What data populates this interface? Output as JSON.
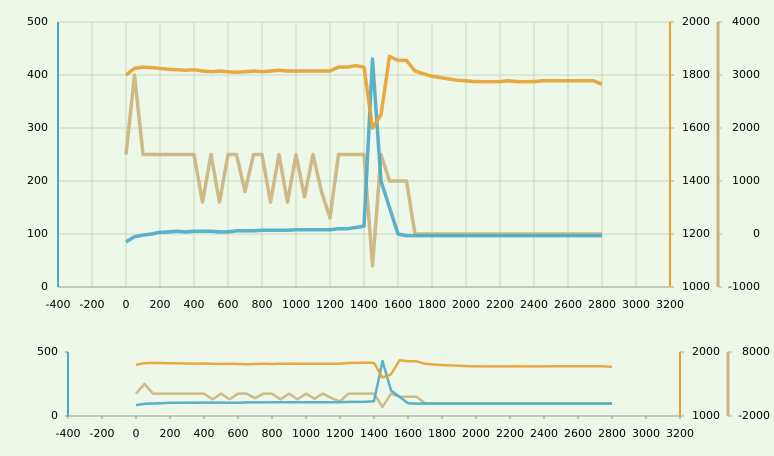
{
  "chart_data": [
    {
      "type": "line",
      "x": [
        0,
        50,
        100,
        150,
        200,
        250,
        300,
        350,
        400,
        450,
        500,
        550,
        600,
        650,
        700,
        750,
        800,
        850,
        900,
        950,
        1000,
        1050,
        1100,
        1150,
        1200,
        1250,
        1300,
        1350,
        1400,
        1450,
        1500,
        1550,
        1600,
        1650,
        1700,
        1750,
        1800,
        1850,
        1900,
        1950,
        2000,
        2050,
        2100,
        2150,
        2200,
        2250,
        2300,
        2350,
        2400,
        2450,
        2500,
        2550,
        2600,
        2650,
        2700,
        2750,
        2800
      ],
      "xlim": [
        -400,
        3200
      ],
      "xticks": [
        -400,
        -200,
        0,
        200,
        400,
        600,
        800,
        1000,
        1200,
        1400,
        1600,
        1800,
        2000,
        2200,
        2400,
        2600,
        2800,
        3000,
        3200
      ],
      "ylim": [
        0,
        500
      ],
      "yticks": [
        0,
        100,
        200,
        300,
        400,
        500
      ],
      "y2lim": [
        1000,
        2000
      ],
      "y2ticks": [
        1000,
        1200,
        1400,
        1600,
        1800,
        2000
      ],
      "y3lim": [
        -1000,
        4000
      ],
      "y3ticks": [
        -1000,
        0,
        1000,
        2000,
        3000,
        4000
      ],
      "grid": true,
      "series": [
        {
          "color": "#c8b27e",
          "axis": "y3",
          "values": [
            1500,
            3000,
            1500,
            1500,
            1500,
            1500,
            1500,
            1500,
            1500,
            600,
            1500,
            600,
            1500,
            1500,
            800,
            1500,
            1500,
            600,
            1500,
            600,
            1500,
            700,
            1500,
            800,
            300,
            1500,
            1500,
            1500,
            1500,
            -600,
            1500,
            1000,
            1000,
            1000,
            0,
            0,
            0,
            0,
            0,
            0,
            0,
            0,
            0,
            0,
            0,
            0,
            0,
            0,
            0,
            0,
            0,
            0,
            0,
            0,
            0,
            0,
            0
          ]
        },
        {
          "color": "#4aa8c8",
          "axis": "y",
          "values": [
            85,
            95,
            98,
            100,
            103,
            104,
            105,
            104,
            105,
            105,
            105,
            104,
            104,
            106,
            106,
            106,
            107,
            107,
            107,
            107,
            108,
            108,
            108,
            108,
            108,
            110,
            110,
            112,
            115,
            430,
            200,
            150,
            100,
            97,
            97,
            97,
            97,
            97,
            97,
            97,
            97,
            97,
            97,
            97,
            97,
            97,
            97,
            97,
            97,
            97,
            97,
            97,
            97,
            97,
            97,
            97,
            97
          ]
        },
        {
          "color": "#e8a030",
          "axis": "y2",
          "values": [
            1800,
            1825,
            1830,
            1828,
            1825,
            1822,
            1820,
            1818,
            1820,
            1815,
            1812,
            1815,
            1812,
            1810,
            1812,
            1815,
            1812,
            1815,
            1818,
            1815,
            1815,
            1815,
            1815,
            1815,
            1815,
            1830,
            1830,
            1835,
            1830,
            1600,
            1650,
            1870,
            1855,
            1855,
            1815,
            1805,
            1795,
            1790,
            1785,
            1780,
            1778,
            1775,
            1775,
            1775,
            1775,
            1778,
            1775,
            1775,
            1775,
            1778,
            1778,
            1778,
            1778,
            1778,
            1778,
            1778,
            1765
          ]
        }
      ]
    },
    {
      "type": "line",
      "x": [
        0,
        50,
        100,
        150,
        200,
        250,
        300,
        350,
        400,
        450,
        500,
        550,
        600,
        650,
        700,
        750,
        800,
        850,
        900,
        950,
        1000,
        1050,
        1100,
        1150,
        1200,
        1250,
        1300,
        1350,
        1400,
        1450,
        1500,
        1550,
        1600,
        1650,
        1700,
        1750,
        1800,
        1850,
        1900,
        1950,
        2000,
        2050,
        2100,
        2150,
        2200,
        2250,
        2300,
        2350,
        2400,
        2450,
        2500,
        2550,
        2600,
        2650,
        2700,
        2750,
        2800
      ],
      "xlim": [
        -400,
        3200
      ],
      "xticks": [
        -400,
        -200,
        0,
        200,
        400,
        600,
        800,
        1000,
        1200,
        1400,
        1600,
        1800,
        2000,
        2200,
        2400,
        2600,
        2800,
        3000,
        3200
      ],
      "ylim": [
        0,
        500
      ],
      "yticks": [
        0,
        500
      ],
      "y2lim": [
        1000,
        2000
      ],
      "y2ticks": [
        1000,
        2000
      ],
      "y3lim": [
        -2000,
        8000
      ],
      "y3ticks": [
        -2000,
        8000
      ],
      "grid": false,
      "series": [
        {
          "color": "#c8b27e",
          "axis": "y3",
          "values": [
            1500,
            3000,
            1500,
            1500,
            1500,
            1500,
            1500,
            1500,
            1500,
            600,
            1500,
            600,
            1500,
            1500,
            800,
            1500,
            1500,
            600,
            1500,
            600,
            1500,
            700,
            1500,
            800,
            300,
            1500,
            1500,
            1500,
            1500,
            -600,
            1500,
            1000,
            1000,
            1000,
            0,
            0,
            0,
            0,
            0,
            0,
            0,
            0,
            0,
            0,
            0,
            0,
            0,
            0,
            0,
            0,
            0,
            0,
            0,
            0,
            0,
            0,
            0
          ]
        },
        {
          "color": "#4aa8c8",
          "axis": "y",
          "values": [
            85,
            95,
            98,
            100,
            103,
            104,
            105,
            104,
            105,
            105,
            105,
            104,
            104,
            106,
            106,
            106,
            107,
            107,
            107,
            107,
            108,
            108,
            108,
            108,
            108,
            110,
            110,
            112,
            115,
            430,
            200,
            150,
            100,
            97,
            97,
            97,
            97,
            97,
            97,
            97,
            97,
            97,
            97,
            97,
            97,
            97,
            97,
            97,
            97,
            97,
            97,
            97,
            97,
            97,
            97,
            97,
            97
          ]
        },
        {
          "color": "#e8a030",
          "axis": "y2",
          "values": [
            1800,
            1825,
            1830,
            1828,
            1825,
            1822,
            1820,
            1818,
            1820,
            1815,
            1812,
            1815,
            1812,
            1810,
            1812,
            1815,
            1812,
            1815,
            1818,
            1815,
            1815,
            1815,
            1815,
            1815,
            1815,
            1830,
            1830,
            1835,
            1830,
            1600,
            1650,
            1870,
            1855,
            1855,
            1815,
            1805,
            1795,
            1790,
            1785,
            1780,
            1778,
            1775,
            1775,
            1775,
            1775,
            1778,
            1775,
            1775,
            1775,
            1778,
            1778,
            1778,
            1778,
            1778,
            1778,
            1778,
            1765
          ]
        }
      ]
    }
  ]
}
